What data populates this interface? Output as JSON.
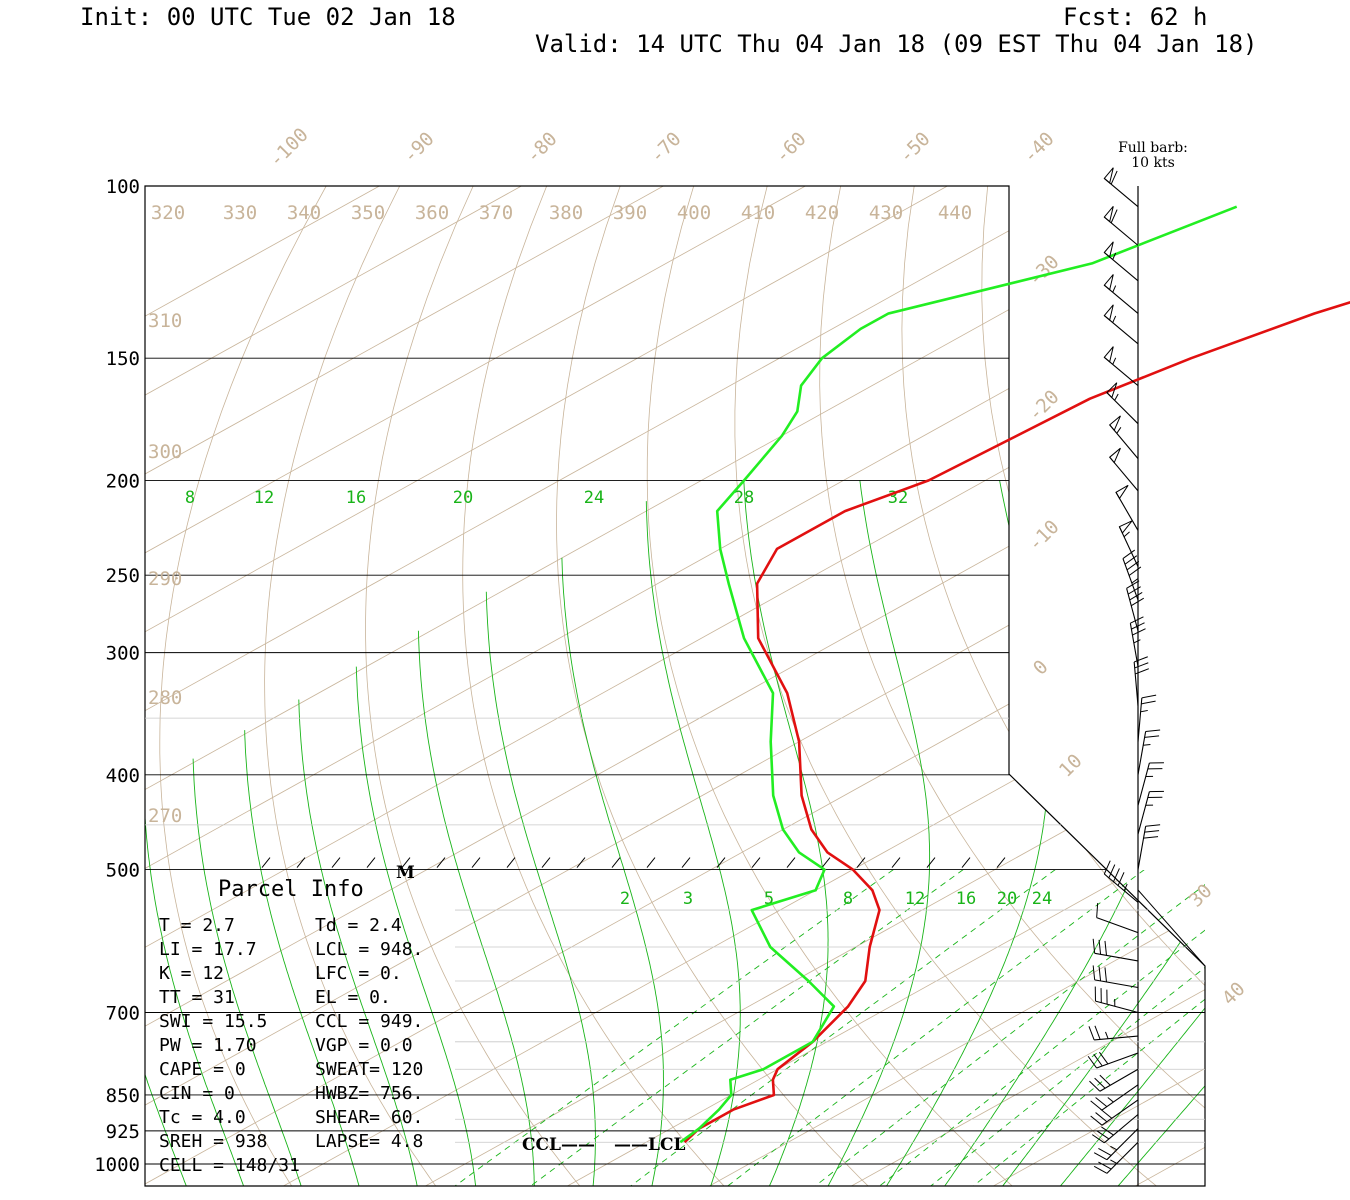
{
  "header": {
    "init": "Init: 00 UTC Tue 02 Jan 18",
    "fcst": "Fcst:   62 h",
    "valid": "Valid: 14 UTC Thu 04 Jan 18 (09 EST Thu 04 Jan 18)"
  },
  "barb_note": {
    "line1": "Full barb:",
    "line2": "10 kts"
  },
  "colors": {
    "temperature": "#e11010",
    "dewpoint": "#22ee22",
    "isotherm": "#c8b49a",
    "mixing_ratio": "#19b419",
    "frame": "#000000"
  },
  "chart_data": {
    "type": "line",
    "pressure_levels": [
      "100",
      "150",
      "200",
      "250",
      "300",
      "400",
      "500",
      "700",
      "850",
      "925",
      "1000"
    ],
    "isotherm_labels": [
      "-100",
      "-90",
      "-80",
      "-70",
      "-60",
      "-50",
      "-40",
      "-30",
      "-20",
      "-10",
      "0",
      "10",
      "30",
      "40"
    ],
    "theta_labels_top": [
      "320",
      "330",
      "340",
      "350",
      "360",
      "370",
      "380",
      "390",
      "400",
      "410",
      "420",
      "430",
      "440"
    ],
    "theta_labels_left": [
      "310",
      "300",
      "290",
      "280",
      "270"
    ],
    "mixing_ratio_upper": [
      "8",
      "12",
      "16",
      "20",
      "24",
      "28",
      "32"
    ],
    "mixing_ratio_lower": [
      "2",
      "3",
      "5",
      "8",
      "12",
      "16",
      "20",
      "24"
    ],
    "series": [
      {
        "name": "temperature",
        "p": [
          110,
          120,
          135,
          150,
          165,
          200,
          215,
          235,
          255,
          290,
          330,
          370,
          420,
          455,
          480,
          500,
          525,
          550,
          600,
          650,
          690,
          750,
          800,
          820,
          850,
          880,
          920,
          950
        ],
        "t": [
          -50,
          -53,
          -58,
          -61,
          -63,
          -64,
          -66,
          -66,
          -63,
          -56,
          -47,
          -40,
          -33,
          -28,
          -24,
          -20,
          -16,
          -13,
          -9,
          -5,
          -3,
          -1,
          0,
          1,
          3,
          2,
          2,
          2.7
        ]
      },
      {
        "name": "dewpoint",
        "p": [
          105,
          120,
          135,
          140,
          150,
          160,
          170,
          180,
          200,
          215,
          235,
          255,
          290,
          330,
          370,
          420,
          455,
          480,
          500,
          525,
          550,
          600,
          650,
          690,
          750,
          800,
          820,
          850,
          880,
          920,
          950
        ],
        "t": [
          -77,
          -80,
          -88,
          -88,
          -87,
          -85,
          -82,
          -80,
          -77,
          -75,
          -70,
          -65,
          -57,
          -48,
          -42,
          -35,
          -30,
          -26,
          -22,
          -20,
          -22,
          -16,
          -9,
          -4,
          -1,
          -1,
          -2,
          0,
          1,
          2,
          2.4
        ]
      }
    ],
    "wind_barbs": [
      {
        "p": 105,
        "dir": 310,
        "spd": 60
      },
      {
        "p": 115,
        "dir": 310,
        "spd": 60
      },
      {
        "p": 125,
        "dir": 310,
        "spd": 55
      },
      {
        "p": 135,
        "dir": 310,
        "spd": 55
      },
      {
        "p": 145,
        "dir": 310,
        "spd": 55
      },
      {
        "p": 160,
        "dir": 310,
        "spd": 55
      },
      {
        "p": 175,
        "dir": 315,
        "spd": 55
      },
      {
        "p": 190,
        "dir": 320,
        "spd": 55
      },
      {
        "p": 205,
        "dir": 320,
        "spd": 50
      },
      {
        "p": 225,
        "dir": 330,
        "spd": 50
      },
      {
        "p": 245,
        "dir": 335,
        "spd": 55
      },
      {
        "p": 265,
        "dir": 340,
        "spd": 45
      },
      {
        "p": 285,
        "dir": 345,
        "spd": 40
      },
      {
        "p": 310,
        "dir": 350,
        "spd": 35
      },
      {
        "p": 340,
        "dir": 355,
        "spd": 30
      },
      {
        "p": 370,
        "dir": 5,
        "spd": 25
      },
      {
        "p": 400,
        "dir": 10,
        "spd": 25
      },
      {
        "p": 430,
        "dir": 15,
        "spd": 25
      },
      {
        "p": 460,
        "dir": 15,
        "spd": 25
      },
      {
        "p": 500,
        "dir": 10,
        "spd": 30
      },
      {
        "p": 540,
        "dir": 310,
        "spd": 45
      },
      {
        "p": 580,
        "dir": 290,
        "spd": 10
      },
      {
        "p": 620,
        "dir": 280,
        "spd": 30
      },
      {
        "p": 660,
        "dir": 280,
        "spd": 30
      },
      {
        "p": 700,
        "dir": 285,
        "spd": 35
      },
      {
        "p": 740,
        "dir": 265,
        "spd": 25
      },
      {
        "p": 770,
        "dir": 250,
        "spd": 30
      },
      {
        "p": 800,
        "dir": 240,
        "spd": 30
      },
      {
        "p": 830,
        "dir": 235,
        "spd": 25
      },
      {
        "p": 860,
        "dir": 235,
        "spd": 30
      },
      {
        "p": 890,
        "dir": 230,
        "spd": 30
      },
      {
        "p": 920,
        "dir": 225,
        "spd": 25
      },
      {
        "p": 950,
        "dir": 225,
        "spd": 25
      }
    ]
  },
  "parcel_info": {
    "title": "Parcel Info",
    "left": [
      "T  =     2.7",
      "LI =    17.7",
      "K  =      12",
      "TT =      31",
      "SWI =   15.5",
      "PW =    1.70",
      "CAPE =     0",
      "CIN =      0",
      "Tc =     4.0",
      "SREH =   938",
      "CELL = 148/31"
    ],
    "right": [
      "Td =   2.4",
      "LCL =  948.",
      "LFC =    0.",
      "EL  =    0.",
      "CCL =  949.",
      "VGP =   0.0",
      "SWEAT=  120",
      "HWBZ=  756.",
      "SHEAR=  60.",
      "LAPSE=  4.8",
      ""
    ]
  },
  "markers": {
    "ccl": "CCL——",
    "lcl": "——LCL",
    "m": "M"
  }
}
